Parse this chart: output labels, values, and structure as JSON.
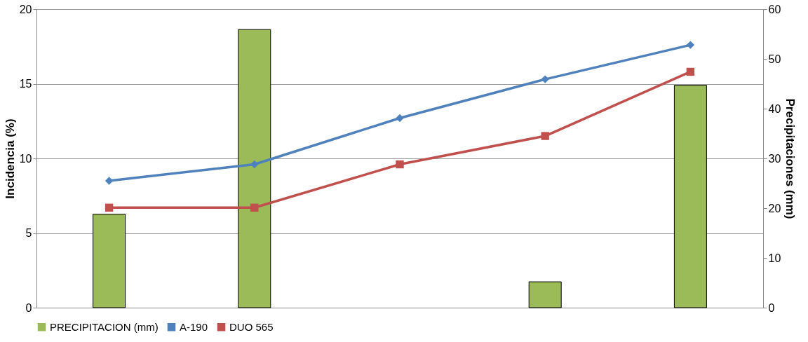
{
  "chart_data": {
    "type": "line",
    "categories": [
      null,
      null,
      null,
      null,
      null
    ],
    "ylabel": "Incidencia (%)",
    "y2label": "Precipitaciones (mm)",
    "ylim": [
      0,
      20
    ],
    "yticks": [
      0,
      5,
      10,
      15,
      20
    ],
    "y2lim": [
      0,
      60
    ],
    "y2ticks": [
      0,
      10,
      20,
      30,
      40,
      50,
      60
    ],
    "grid": "y",
    "legend": "bottom",
    "series": [
      {
        "name": "PRECIPITACION (mm)",
        "type": "bar",
        "axis": "y2",
        "color": "#9bbb59",
        "values": [
          18.8,
          55.9,
          null,
          5.2,
          44.7
        ]
      },
      {
        "name": "A-190",
        "color": "#4f81bd",
        "marker": "diamond",
        "values": [
          8.5,
          9.6,
          12.7,
          15.3,
          17.6
        ]
      },
      {
        "name": "DUO 565",
        "color": "#c0504d",
        "marker": "square",
        "values": [
          6.7,
          6.7,
          9.6,
          11.5,
          15.8
        ]
      }
    ]
  }
}
